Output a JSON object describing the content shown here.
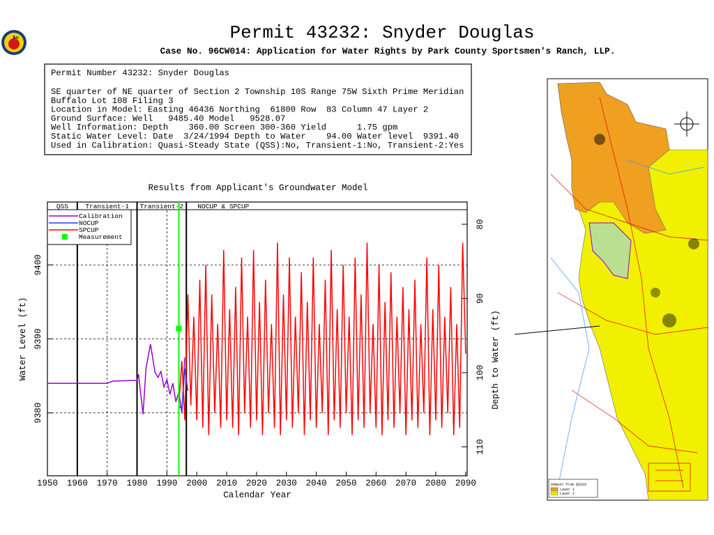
{
  "header": {
    "title": "Permit 43232:  Snyder Douglas",
    "subtitle": "Case No. 96CW014: Application for Water Rights by Park County Sportsmen's Ranch, LLP."
  },
  "info": {
    "lines": [
      "Permit Number 43232: Snyder Douglas",
      "SE quarter of NE quarter of Section 2 Township 10S Range 75W Sixth Prime Meridian",
      "Buffalo Lot 108 Filing 3",
      "Location in Model: Easting 46436 Northing  61800 Row  83 Column 47 Layer 2",
      "Ground Surface: Well   9485.40 Model   9528.07",
      "Well Information: Depth    360.00 Screen 300-360 Yield      1.75 gpm",
      "Static Water Level: Date  3/24/1994 Depth to Water    94.00 Water level  9391.40",
      "Used in Calibration: Quasi-Steady State (QSS):No, Transient-1:No, Transient-2:Yes"
    ]
  },
  "map": {
    "legend_title": "Domain from QSS19",
    "legend_items": [
      {
        "name": "Layer 1",
        "color": "#f0a020"
      },
      {
        "name": "Layer 2",
        "color": "#f0f000"
      }
    ]
  },
  "chart_data": {
    "type": "line",
    "title": "Results from Applicant's Groundwater Model",
    "x_label": "Calendar Year",
    "y_label": "Water Level (ft)",
    "y2_label": "Depth to Water (ft)",
    "xlim": [
      1950,
      2090.5
    ],
    "xticks": [
      1950,
      1960,
      1970,
      1980,
      1990,
      2000,
      2010,
      2020,
      2030,
      2040,
      2050,
      2060,
      2070,
      2080,
      2090
    ],
    "xgrid": [
      1970,
      1990
    ],
    "ylim": [
      9371.5,
      9408.5
    ],
    "yticks": [
      9380,
      9390,
      9400
    ],
    "y2lim": [
      113.9,
      77
    ],
    "y2ticks": [
      80,
      90,
      100,
      110
    ],
    "grid": true,
    "periods": [
      {
        "label": "QSS",
        "start": 1950,
        "end": 1960
      },
      {
        "label": "Transient-1",
        "start": 1960,
        "end": 1980
      },
      {
        "label": "Transient-2",
        "start": 1980,
        "end": 1996.5
      },
      {
        "label": "NOCUP  &  SPCUP",
        "start": 1996.5,
        "end": 2090.5
      }
    ],
    "series": [
      {
        "name": "Calibration",
        "color": "#9900cc",
        "x": [
          1950,
          1970,
          1972,
          1980,
          1980.5,
          1982,
          1983,
          1984.5,
          1986,
          1987,
          1988,
          1989,
          1990,
          1991,
          1992,
          1993,
          1994,
          1995,
          1996
        ],
        "values": [
          9384.0,
          9384.0,
          9384.3,
          9384.4,
          9385.2,
          9379.8,
          9386,
          9389.3,
          9385.5,
          9384.8,
          9385.6,
          9383.5,
          9384.5,
          9382.5,
          9384,
          9381.5,
          9382.8,
          9380,
          9387.5
        ]
      },
      {
        "name": "NOCUP",
        "color": "#3333ff",
        "x": [
          1994,
          1995,
          1996,
          1997
        ],
        "values": [
          9381,
          9380.5,
          9386,
          9383
        ]
      },
      {
        "name": "SPCUP",
        "color": "#ff0000",
        "x": [
          1994,
          1995,
          1996,
          1997,
          1998,
          1999,
          2000,
          2001,
          2002,
          2003,
          2004,
          2005,
          2006,
          2007,
          2008,
          2009,
          2010,
          2011,
          2012,
          2013,
          2014,
          2015,
          2016,
          2017,
          2018,
          2019,
          2020,
          2021,
          2022,
          2023,
          2024,
          2025,
          2026,
          2027,
          2028,
          2029,
          2030,
          2031,
          2032,
          2033,
          2034,
          2035,
          2036,
          2037,
          2038,
          2039,
          2040,
          2041,
          2042,
          2043,
          2044,
          2045,
          2046,
          2047,
          2048,
          2049,
          2050,
          2051,
          2052,
          2053,
          2054,
          2055,
          2056,
          2057,
          2058,
          2059,
          2060,
          2061,
          2062,
          2063,
          2064,
          2065,
          2066,
          2067,
          2068,
          2069,
          2070,
          2071,
          2072,
          2073,
          2074,
          2075,
          2076,
          2077,
          2078,
          2079,
          2080,
          2081,
          2082,
          2083,
          2084,
          2085,
          2086,
          2087,
          2088,
          2089,
          2090
        ],
        "values": [
          9381,
          9387,
          9379,
          9396,
          9381,
          9393,
          9379,
          9398,
          9378,
          9400,
          9377,
          9396,
          9380,
          9392,
          9378,
          9402,
          9379,
          9394,
          9378,
          9397,
          9377,
          9401,
          9380,
          9393,
          9378,
          9402,
          9379,
          9395,
          9377,
          9398,
          9380,
          9392,
          9378,
          9403,
          9377,
          9396,
          9379,
          9401,
          9378,
          9393,
          9380,
          9399,
          9377,
          9395,
          9379,
          9401,
          9378,
          9392,
          9380,
          9398,
          9377,
          9402,
          9379,
          9394,
          9378,
          9400,
          9380,
          9393,
          9377,
          9401,
          9379,
          9396,
          9378,
          9403,
          9380,
          9392,
          9378,
          9400,
          9377,
          9395,
          9379,
          9399,
          9378,
          9393,
          9380,
          9397,
          9377,
          9394,
          9379,
          9398,
          9378,
          9392,
          9380,
          9401,
          9377,
          9394,
          9379,
          9400,
          9378,
          9393,
          9380,
          9397,
          9377,
          9392,
          9378,
          9403,
          9388
        ]
      }
    ],
    "measurement": {
      "name": "Measurement",
      "color": "#00ff00",
      "x": 1994,
      "value": 9391.4
    }
  }
}
